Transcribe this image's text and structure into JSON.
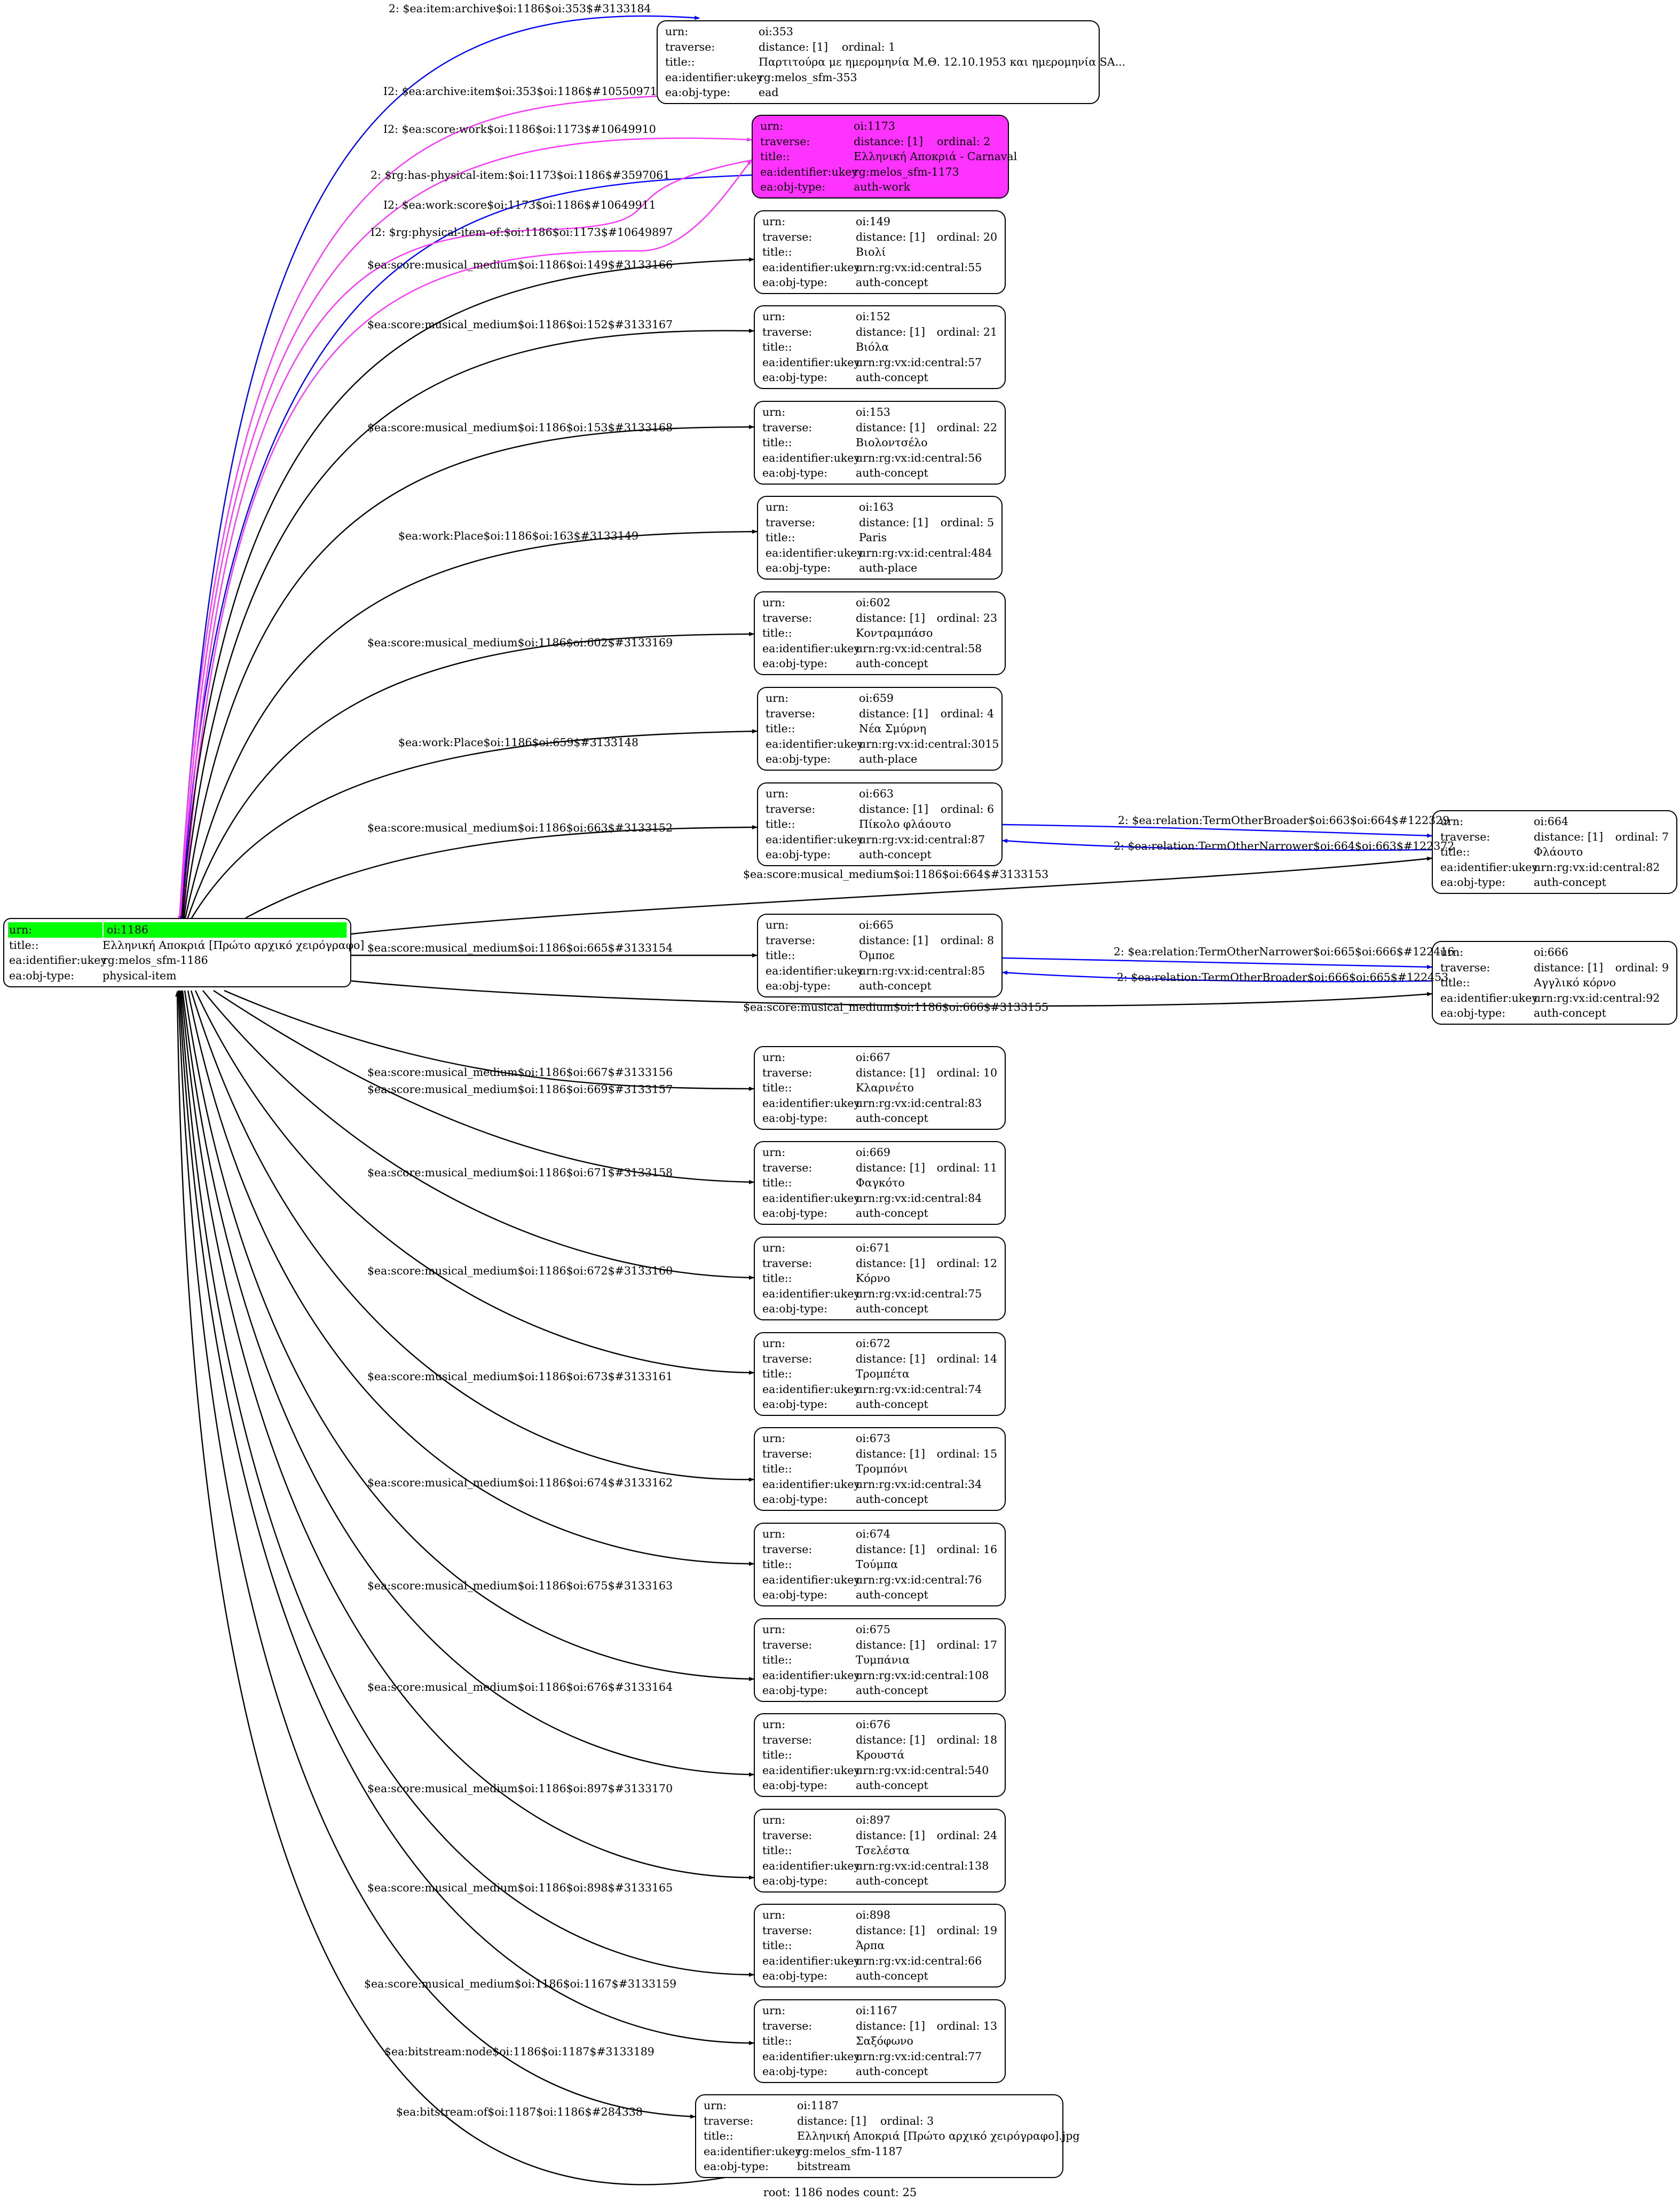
{
  "graph": {
    "footer": "root: 1186 nodes count: 25",
    "colors": {
      "black": "#000000",
      "blue": "#0000ff",
      "magenta": "#ff33ff",
      "green": "#00ff00"
    },
    "root": {
      "urn": "oi:1186",
      "title": "Ελληνική Αποκριά [Πρώτο αρχικό χειρόγραφο]",
      "ukey": "rg:melos_sfm-1186",
      "type": "physical-item"
    },
    "nodes": [
      {
        "id": "n353",
        "urn": "oi:353",
        "distance": "[1]",
        "ordinal": "1",
        "title": "Παρτιτούρα με ημερομηνία Μ.Θ. 12.10.1953 και ημερομηνία SA...",
        "ukey": "rg:melos_sfm-353",
        "type": "ead"
      },
      {
        "id": "n1173",
        "urn": "oi:1173",
        "distance": "[1]",
        "ordinal": "2",
        "title": "Ελληνική Αποκριά - Carnaval",
        "ukey": "rg:melos_sfm-1173",
        "type": "auth-work",
        "highlight": true
      },
      {
        "id": "n149",
        "urn": "oi:149",
        "distance": "[1]",
        "ordinal": "20",
        "title": "Βιολί",
        "ukey": "urn:rg:vx:id:central:55",
        "type": "auth-concept"
      },
      {
        "id": "n152",
        "urn": "oi:152",
        "distance": "[1]",
        "ordinal": "21",
        "title": "Βιόλα",
        "ukey": "urn:rg:vx:id:central:57",
        "type": "auth-concept"
      },
      {
        "id": "n153",
        "urn": "oi:153",
        "distance": "[1]",
        "ordinal": "22",
        "title": "Βιολοντσέλο",
        "ukey": "urn:rg:vx:id:central:56",
        "type": "auth-concept"
      },
      {
        "id": "n163",
        "urn": "oi:163",
        "distance": "[1]",
        "ordinal": "5",
        "title": "Paris",
        "ukey": "urn:rg:vx:id:central:484",
        "type": "auth-place"
      },
      {
        "id": "n602",
        "urn": "oi:602",
        "distance": "[1]",
        "ordinal": "23",
        "title": "Κοντραμπάσο",
        "ukey": "urn:rg:vx:id:central:58",
        "type": "auth-concept"
      },
      {
        "id": "n659",
        "urn": "oi:659",
        "distance": "[1]",
        "ordinal": "4",
        "title": "Νέα Σμύρνη",
        "ukey": "urn:rg:vx:id:central:3015",
        "type": "auth-place"
      },
      {
        "id": "n663",
        "urn": "oi:663",
        "distance": "[1]",
        "ordinal": "6",
        "title": "Πίκολο φλάουτο",
        "ukey": "urn:rg:vx:id:central:87",
        "type": "auth-concept"
      },
      {
        "id": "n664",
        "urn": "oi:664",
        "distance": "[1]",
        "ordinal": "7",
        "title": "Φλάουτο",
        "ukey": "urn:rg:vx:id:central:82",
        "type": "auth-concept"
      },
      {
        "id": "n665",
        "urn": "oi:665",
        "distance": "[1]",
        "ordinal": "8",
        "title": "Όμποε",
        "ukey": "urn:rg:vx:id:central:85",
        "type": "auth-concept"
      },
      {
        "id": "n666",
        "urn": "oi:666",
        "distance": "[1]",
        "ordinal": "9",
        "title": "Αγγλικό κόρνο",
        "ukey": "urn:rg:vx:id:central:92",
        "type": "auth-concept"
      },
      {
        "id": "n667",
        "urn": "oi:667",
        "distance": "[1]",
        "ordinal": "10",
        "title": "Κλαρινέτο",
        "ukey": "urn:rg:vx:id:central:83",
        "type": "auth-concept"
      },
      {
        "id": "n669",
        "urn": "oi:669",
        "distance": "[1]",
        "ordinal": "11",
        "title": "Φαγκότο",
        "ukey": "urn:rg:vx:id:central:84",
        "type": "auth-concept"
      },
      {
        "id": "n671",
        "urn": "oi:671",
        "distance": "[1]",
        "ordinal": "12",
        "title": "Κόρνο",
        "ukey": "urn:rg:vx:id:central:75",
        "type": "auth-concept"
      },
      {
        "id": "n672",
        "urn": "oi:672",
        "distance": "[1]",
        "ordinal": "14",
        "title": "Τρομπέτα",
        "ukey": "urn:rg:vx:id:central:74",
        "type": "auth-concept"
      },
      {
        "id": "n673",
        "urn": "oi:673",
        "distance": "[1]",
        "ordinal": "15",
        "title": "Τρομπόνι",
        "ukey": "urn:rg:vx:id:central:34",
        "type": "auth-concept"
      },
      {
        "id": "n674",
        "urn": "oi:674",
        "distance": "[1]",
        "ordinal": "16",
        "title": "Τούμπα",
        "ukey": "urn:rg:vx:id:central:76",
        "type": "auth-concept"
      },
      {
        "id": "n675",
        "urn": "oi:675",
        "distance": "[1]",
        "ordinal": "17",
        "title": "Τυμπάνια",
        "ukey": "urn:rg:vx:id:central:108",
        "type": "auth-concept"
      },
      {
        "id": "n676",
        "urn": "oi:676",
        "distance": "[1]",
        "ordinal": "18",
        "title": "Κρουστά",
        "ukey": "urn:rg:vx:id:central:540",
        "type": "auth-concept"
      },
      {
        "id": "n897",
        "urn": "oi:897",
        "distance": "[1]",
        "ordinal": "24",
        "title": "Τσελέστα",
        "ukey": "urn:rg:vx:id:central:138",
        "type": "auth-concept"
      },
      {
        "id": "n898",
        "urn": "oi:898",
        "distance": "[1]",
        "ordinal": "19",
        "title": "Άρπα",
        "ukey": "urn:rg:vx:id:central:66",
        "type": "auth-concept"
      },
      {
        "id": "n1167",
        "urn": "oi:1167",
        "distance": "[1]",
        "ordinal": "13",
        "title": "Σαξόφωνο",
        "ukey": "urn:rg:vx:id:central:77",
        "type": "auth-concept"
      },
      {
        "id": "n1187",
        "urn": "oi:1187",
        "distance": "[1]",
        "ordinal": "3",
        "title": "Ελληνική Αποκριά [Πρώτο αρχικό χειρόγραφο].jpg",
        "ukey": "rg:melos_sfm-1187",
        "type": "bitstream"
      }
    ],
    "edges": [
      {
        "id": "e_archive",
        "label": "2: $ea:item:archive$oi:1186$oi:353$#3133184",
        "color": "blue"
      },
      {
        "id": "e_archive_rev",
        "label": "I2: $ea:archive:item$oi:353$oi:1186$#10550971",
        "color": "magenta"
      },
      {
        "id": "e_scorework",
        "label": "I2: $ea:score:work$oi:1186$oi:1173$#10649910",
        "color": "magenta"
      },
      {
        "id": "e_hasphys",
        "label": "2: $rg:has-physical-item:$oi:1173$oi:1186$#3597061",
        "color": "blue"
      },
      {
        "id": "e_workscore",
        "label": "I2: $ea:work:score$oi:1173$oi:1186$#10649911",
        "color": "magenta"
      },
      {
        "id": "e_physof",
        "label": "I2: $rg:physical-item-of:$oi:1186$oi:1173$#10649897",
        "color": "magenta"
      },
      {
        "id": "e149",
        "label": "$ea:score:musical_medium$oi:1186$oi:149$#3133166",
        "color": "black"
      },
      {
        "id": "e152",
        "label": "$ea:score:musical_medium$oi:1186$oi:152$#3133167",
        "color": "black"
      },
      {
        "id": "e153",
        "label": "$ea:score:musical_medium$oi:1186$oi:153$#3133168",
        "color": "black"
      },
      {
        "id": "e163",
        "label": "$ea:work:Place$oi:1186$oi:163$#3133149",
        "color": "black"
      },
      {
        "id": "e602",
        "label": "$ea:score:musical_medium$oi:1186$oi:602$#3133169",
        "color": "black"
      },
      {
        "id": "e659",
        "label": "$ea:work:Place$oi:1186$oi:659$#3133148",
        "color": "black"
      },
      {
        "id": "e663",
        "label": "$ea:score:musical_medium$oi:1186$oi:663$#3133152",
        "color": "black"
      },
      {
        "id": "e663_664",
        "label": "2: $ea:relation:TermOtherBroader$oi:663$oi:664$#122329",
        "color": "blue"
      },
      {
        "id": "e664_663",
        "label": "2: $ea:relation:TermOtherNarrower$oi:664$oi:663$#122372",
        "color": "blue"
      },
      {
        "id": "e664",
        "label": "$ea:score:musical_medium$oi:1186$oi:664$#3133153",
        "color": "black"
      },
      {
        "id": "e665",
        "label": "$ea:score:musical_medium$oi:1186$oi:665$#3133154",
        "color": "black"
      },
      {
        "id": "e665_666",
        "label": "2: $ea:relation:TermOtherNarrower$oi:665$oi:666$#122416",
        "color": "blue"
      },
      {
        "id": "e666_665",
        "label": "2: $ea:relation:TermOtherBroader$oi:666$oi:665$#122453",
        "color": "blue"
      },
      {
        "id": "e666",
        "label": "$ea:score:musical_medium$oi:1186$oi:666$#3133155",
        "color": "black"
      },
      {
        "id": "e667",
        "label": "$ea:score:musical_medium$oi:1186$oi:667$#3133156",
        "color": "black"
      },
      {
        "id": "e669",
        "label": "$ea:score:musical_medium$oi:1186$oi:669$#3133157",
        "color": "black"
      },
      {
        "id": "e671",
        "label": "$ea:score:musical_medium$oi:1186$oi:671$#3133158",
        "color": "black"
      },
      {
        "id": "e672",
        "label": "$ea:score:musical_medium$oi:1186$oi:672$#3133160",
        "color": "black"
      },
      {
        "id": "e673",
        "label": "$ea:score:musical_medium$oi:1186$oi:673$#3133161",
        "color": "black"
      },
      {
        "id": "e674",
        "label": "$ea:score:musical_medium$oi:1186$oi:674$#3133162",
        "color": "black"
      },
      {
        "id": "e675",
        "label": "$ea:score:musical_medium$oi:1186$oi:675$#3133163",
        "color": "black"
      },
      {
        "id": "e676",
        "label": "$ea:score:musical_medium$oi:1186$oi:676$#3133164",
        "color": "black"
      },
      {
        "id": "e897",
        "label": "$ea:score:musical_medium$oi:1186$oi:897$#3133170",
        "color": "black"
      },
      {
        "id": "e898",
        "label": "$ea:score:musical_medium$oi:1186$oi:898$#3133165",
        "color": "black"
      },
      {
        "id": "e1167",
        "label": "$ea:score:musical_medium$oi:1186$oi:1167$#3133159",
        "color": "black"
      },
      {
        "id": "e1187",
        "label": "$ea:bitstream:node$oi:1186$oi:1187$#3133189",
        "color": "black"
      },
      {
        "id": "e1187_rev",
        "label": "$ea:bitstream:of$oi:1187$oi:1186$#284338",
        "color": "black"
      }
    ],
    "field_labels": {
      "urn": "urn:",
      "traverse": "traverse:",
      "title": "title::",
      "ukey": "ea:identifier:ukey",
      "type": "ea:obj-type:",
      "distance_prefix": "distance:",
      "ordinal_prefix": "ordinal:"
    }
  }
}
